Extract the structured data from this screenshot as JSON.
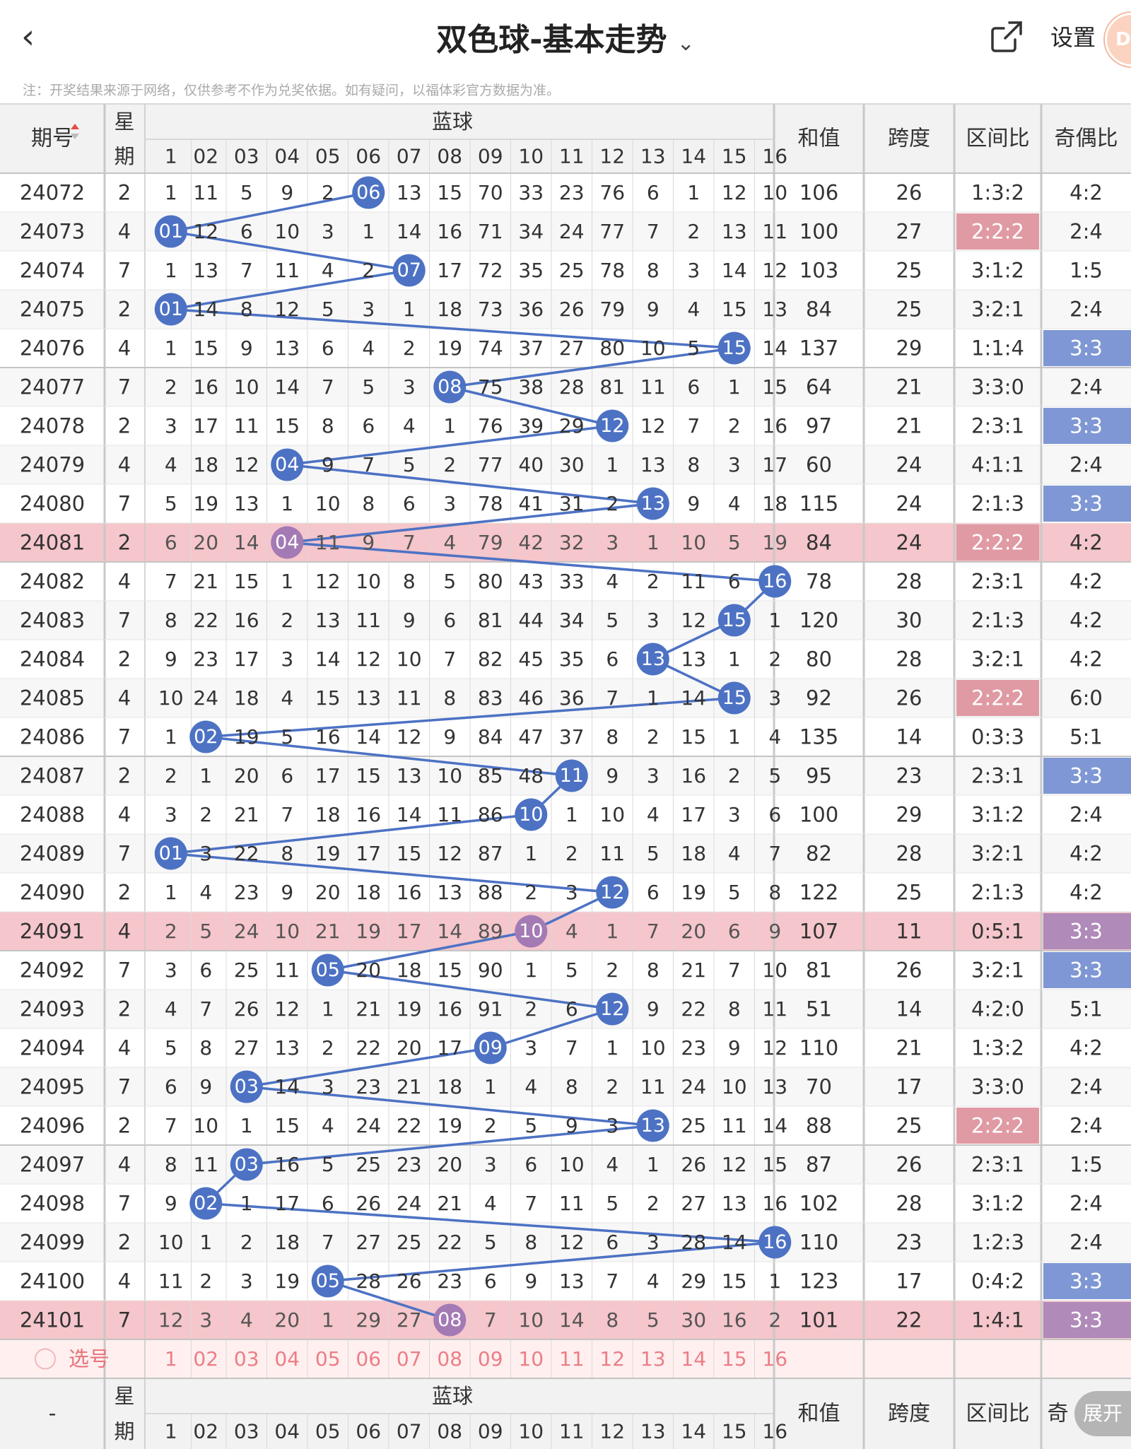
{
  "header": {
    "title": "双色球-基本走势",
    "settings_label": "设置"
  },
  "notice": "注：开奖结果来源于网络，仅供参考不作为兑奖依据。如有疑问，以福体彩官方数据为准。",
  "table_headers": {
    "period": "期号",
    "week_top": "星",
    "week_bottom": "期",
    "blue": "蓝球",
    "sum": "和值",
    "span": "跨度",
    "zone": "区间比",
    "odd_even": "奇偶比"
  },
  "footer_headers": {
    "period": "-",
    "week_top": "星",
    "week_bottom": "期",
    "blue": "蓝球",
    "sum": "和值",
    "span": "跨度",
    "zone": "区间比",
    "odd_even": "奇"
  },
  "select_row_label": "选号",
  "expand_label": "展开",
  "ball_numbers": [
    "1",
    "02",
    "03",
    "04",
    "05",
    "06",
    "07",
    "08",
    "09",
    "10",
    "11",
    "12",
    "13",
    "14",
    "15",
    "16"
  ],
  "colors": {
    "line": "#4d72c4",
    "ball": "#4d72c4",
    "ball_hl": "#a37ab4",
    "hl_row": "#f5c6cb",
    "zone_hl": "#e09aa4",
    "oe_hl": "#7f97d4",
    "oe_hl_on_pink": "#b08ab8",
    "select_row": "#fff0ef",
    "grid": "#d8d8d8",
    "header_bg": "#f2f2f2"
  },
  "rows": [
    {
      "period": "24072",
      "week": "2",
      "cells": [
        "1",
        "11",
        "5",
        "9",
        "2",
        "06",
        "13",
        "15",
        "70",
        "33",
        "23",
        "76",
        "6",
        "1",
        "12",
        "10"
      ],
      "blue": 6,
      "sum": "106",
      "span": "26",
      "zone": "1:3:2",
      "oe": "4:2",
      "hl": false,
      "zhl": false,
      "ohl": false
    },
    {
      "period": "24073",
      "week": "4",
      "cells": [
        "01",
        "12",
        "6",
        "10",
        "3",
        "1",
        "14",
        "16",
        "71",
        "34",
        "24",
        "77",
        "7",
        "2",
        "13",
        "11"
      ],
      "blue": 1,
      "sum": "100",
      "span": "27",
      "zone": "2:2:2",
      "oe": "2:4",
      "hl": false,
      "zhl": true,
      "ohl": false
    },
    {
      "period": "24074",
      "week": "7",
      "cells": [
        "1",
        "13",
        "7",
        "11",
        "4",
        "2",
        "07",
        "17",
        "72",
        "35",
        "25",
        "78",
        "8",
        "3",
        "14",
        "12"
      ],
      "blue": 7,
      "sum": "103",
      "span": "25",
      "zone": "3:1:2",
      "oe": "1:5",
      "hl": false,
      "zhl": false,
      "ohl": false
    },
    {
      "period": "24075",
      "week": "2",
      "cells": [
        "01",
        "14",
        "8",
        "12",
        "5",
        "3",
        "1",
        "18",
        "73",
        "36",
        "26",
        "79",
        "9",
        "4",
        "15",
        "13"
      ],
      "blue": 1,
      "sum": "84",
      "span": "25",
      "zone": "3:2:1",
      "oe": "2:4",
      "hl": false,
      "zhl": false,
      "ohl": false
    },
    {
      "period": "24076",
      "week": "4",
      "cells": [
        "1",
        "15",
        "9",
        "13",
        "6",
        "4",
        "2",
        "19",
        "74",
        "37",
        "27",
        "80",
        "10",
        "5",
        "15",
        "14"
      ],
      "blue": 15,
      "sum": "137",
      "span": "29",
      "zone": "1:1:4",
      "oe": "3:3",
      "hl": false,
      "zhl": false,
      "ohl": true
    },
    {
      "period": "24077",
      "week": "7",
      "cells": [
        "2",
        "16",
        "10",
        "14",
        "7",
        "5",
        "3",
        "08",
        "75",
        "38",
        "28",
        "81",
        "11",
        "6",
        "1",
        "15"
      ],
      "blue": 8,
      "sum": "64",
      "span": "21",
      "zone": "3:3:0",
      "oe": "2:4",
      "hl": false,
      "zhl": false,
      "ohl": false
    },
    {
      "period": "24078",
      "week": "2",
      "cells": [
        "3",
        "17",
        "11",
        "15",
        "8",
        "6",
        "4",
        "1",
        "76",
        "39",
        "29",
        "12",
        "12",
        "7",
        "2",
        "16"
      ],
      "blue": 12,
      "sum": "97",
      "span": "21",
      "zone": "2:3:1",
      "oe": "3:3",
      "hl": false,
      "zhl": false,
      "ohl": true
    },
    {
      "period": "24079",
      "week": "4",
      "cells": [
        "4",
        "18",
        "12",
        "04",
        "9",
        "7",
        "5",
        "2",
        "77",
        "40",
        "30",
        "1",
        "13",
        "8",
        "3",
        "17"
      ],
      "blue": 4,
      "sum": "60",
      "span": "24",
      "zone": "4:1:1",
      "oe": "2:4",
      "hl": false,
      "zhl": false,
      "ohl": false
    },
    {
      "period": "24080",
      "week": "7",
      "cells": [
        "5",
        "19",
        "13",
        "1",
        "10",
        "8",
        "6",
        "3",
        "78",
        "41",
        "31",
        "2",
        "13",
        "9",
        "4",
        "18"
      ],
      "blue": 13,
      "sum": "115",
      "span": "24",
      "zone": "2:1:3",
      "oe": "3:3",
      "hl": false,
      "zhl": false,
      "ohl": true
    },
    {
      "period": "24081",
      "week": "2",
      "cells": [
        "6",
        "20",
        "14",
        "04",
        "11",
        "9",
        "7",
        "4",
        "79",
        "42",
        "32",
        "3",
        "1",
        "10",
        "5",
        "19"
      ],
      "blue": 4,
      "sum": "84",
      "span": "24",
      "zone": "2:2:2",
      "oe": "4:2",
      "hl": true,
      "zhl": true,
      "ohl": false
    },
    {
      "period": "24082",
      "week": "4",
      "cells": [
        "7",
        "21",
        "15",
        "1",
        "12",
        "10",
        "8",
        "5",
        "80",
        "43",
        "33",
        "4",
        "2",
        "11",
        "6",
        "16"
      ],
      "blue": 16,
      "sum": "78",
      "span": "28",
      "zone": "2:3:1",
      "oe": "4:2",
      "hl": false,
      "zhl": false,
      "ohl": false
    },
    {
      "period": "24083",
      "week": "7",
      "cells": [
        "8",
        "22",
        "16",
        "2",
        "13",
        "11",
        "9",
        "6",
        "81",
        "44",
        "34",
        "5",
        "3",
        "12",
        "15",
        "1"
      ],
      "blue": 15,
      "sum": "120",
      "span": "30",
      "zone": "2:1:3",
      "oe": "4:2",
      "hl": false,
      "zhl": false,
      "ohl": false
    },
    {
      "period": "24084",
      "week": "2",
      "cells": [
        "9",
        "23",
        "17",
        "3",
        "14",
        "12",
        "10",
        "7",
        "82",
        "45",
        "35",
        "6",
        "13",
        "13",
        "1",
        "2"
      ],
      "blue": 13,
      "sum": "80",
      "span": "28",
      "zone": "3:2:1",
      "oe": "4:2",
      "hl": false,
      "zhl": false,
      "ohl": false
    },
    {
      "period": "24085",
      "week": "4",
      "cells": [
        "10",
        "24",
        "18",
        "4",
        "15",
        "13",
        "11",
        "8",
        "83",
        "46",
        "36",
        "7",
        "1",
        "14",
        "15",
        "3"
      ],
      "blue": 15,
      "sum": "92",
      "span": "26",
      "zone": "2:2:2",
      "oe": "6:0",
      "hl": false,
      "zhl": true,
      "ohl": false
    },
    {
      "period": "24086",
      "week": "7",
      "cells": [
        "1",
        "02",
        "19",
        "5",
        "16",
        "14",
        "12",
        "9",
        "84",
        "47",
        "37",
        "8",
        "2",
        "15",
        "1",
        "4"
      ],
      "blue": 2,
      "sum": "135",
      "span": "14",
      "zone": "0:3:3",
      "oe": "5:1",
      "hl": false,
      "zhl": false,
      "ohl": false
    },
    {
      "period": "24087",
      "week": "2",
      "cells": [
        "2",
        "1",
        "20",
        "6",
        "17",
        "15",
        "13",
        "10",
        "85",
        "48",
        "11",
        "9",
        "3",
        "16",
        "2",
        "5"
      ],
      "blue": 11,
      "sum": "95",
      "span": "23",
      "zone": "2:3:1",
      "oe": "3:3",
      "hl": false,
      "zhl": false,
      "ohl": true
    },
    {
      "period": "24088",
      "week": "4",
      "cells": [
        "3",
        "2",
        "21",
        "7",
        "18",
        "16",
        "14",
        "11",
        "86",
        "10",
        "1",
        "10",
        "4",
        "17",
        "3",
        "6"
      ],
      "blue": 10,
      "sum": "100",
      "span": "29",
      "zone": "3:1:2",
      "oe": "2:4",
      "hl": false,
      "zhl": false,
      "ohl": false
    },
    {
      "period": "24089",
      "week": "7",
      "cells": [
        "01",
        "3",
        "22",
        "8",
        "19",
        "17",
        "15",
        "12",
        "87",
        "1",
        "2",
        "11",
        "5",
        "18",
        "4",
        "7"
      ],
      "blue": 1,
      "sum": "82",
      "span": "28",
      "zone": "3:2:1",
      "oe": "4:2",
      "hl": false,
      "zhl": false,
      "ohl": false
    },
    {
      "period": "24090",
      "week": "2",
      "cells": [
        "1",
        "4",
        "23",
        "9",
        "20",
        "18",
        "16",
        "13",
        "88",
        "2",
        "3",
        "12",
        "6",
        "19",
        "5",
        "8"
      ],
      "blue": 12,
      "sum": "122",
      "span": "25",
      "zone": "2:1:3",
      "oe": "4:2",
      "hl": false,
      "zhl": false,
      "ohl": false
    },
    {
      "period": "24091",
      "week": "4",
      "cells": [
        "2",
        "5",
        "24",
        "10",
        "21",
        "19",
        "17",
        "14",
        "89",
        "10",
        "4",
        "1",
        "7",
        "20",
        "6",
        "9"
      ],
      "blue": 10,
      "sum": "107",
      "span": "11",
      "zone": "0:5:1",
      "oe": "3:3",
      "hl": true,
      "zhl": false,
      "ohl": true
    },
    {
      "period": "24092",
      "week": "7",
      "cells": [
        "3",
        "6",
        "25",
        "11",
        "05",
        "20",
        "18",
        "15",
        "90",
        "1",
        "5",
        "2",
        "8",
        "21",
        "7",
        "10"
      ],
      "blue": 5,
      "sum": "81",
      "span": "26",
      "zone": "3:2:1",
      "oe": "3:3",
      "hl": false,
      "zhl": false,
      "ohl": true
    },
    {
      "period": "24093",
      "week": "2",
      "cells": [
        "4",
        "7",
        "26",
        "12",
        "1",
        "21",
        "19",
        "16",
        "91",
        "2",
        "6",
        "12",
        "9",
        "22",
        "8",
        "11"
      ],
      "blue": 12,
      "sum": "51",
      "span": "14",
      "zone": "4:2:0",
      "oe": "5:1",
      "hl": false,
      "zhl": false,
      "ohl": false
    },
    {
      "period": "24094",
      "week": "4",
      "cells": [
        "5",
        "8",
        "27",
        "13",
        "2",
        "22",
        "20",
        "17",
        "09",
        "3",
        "7",
        "1",
        "10",
        "23",
        "9",
        "12"
      ],
      "blue": 9,
      "sum": "110",
      "span": "21",
      "zone": "1:3:2",
      "oe": "4:2",
      "hl": false,
      "zhl": false,
      "ohl": false
    },
    {
      "period": "24095",
      "week": "7",
      "cells": [
        "6",
        "9",
        "03",
        "14",
        "3",
        "23",
        "21",
        "18",
        "1",
        "4",
        "8",
        "2",
        "11",
        "24",
        "10",
        "13"
      ],
      "blue": 3,
      "sum": "70",
      "span": "17",
      "zone": "3:3:0",
      "oe": "2:4",
      "hl": false,
      "zhl": false,
      "ohl": false
    },
    {
      "period": "24096",
      "week": "2",
      "cells": [
        "7",
        "10",
        "1",
        "15",
        "4",
        "24",
        "22",
        "19",
        "2",
        "5",
        "9",
        "3",
        "13",
        "25",
        "11",
        "14"
      ],
      "blue": 13,
      "sum": "88",
      "span": "25",
      "zone": "2:2:2",
      "oe": "2:4",
      "hl": false,
      "zhl": true,
      "ohl": false
    },
    {
      "period": "24097",
      "week": "4",
      "cells": [
        "8",
        "11",
        "03",
        "16",
        "5",
        "25",
        "23",
        "20",
        "3",
        "6",
        "10",
        "4",
        "1",
        "26",
        "12",
        "15"
      ],
      "blue": 3,
      "sum": "87",
      "span": "26",
      "zone": "2:3:1",
      "oe": "1:5",
      "hl": false,
      "zhl": false,
      "ohl": false
    },
    {
      "period": "24098",
      "week": "7",
      "cells": [
        "9",
        "02",
        "1",
        "17",
        "6",
        "26",
        "24",
        "21",
        "4",
        "7",
        "11",
        "5",
        "2",
        "27",
        "13",
        "16"
      ],
      "blue": 2,
      "sum": "102",
      "span": "28",
      "zone": "3:1:2",
      "oe": "2:4",
      "hl": false,
      "zhl": false,
      "ohl": false
    },
    {
      "period": "24099",
      "week": "2",
      "cells": [
        "10",
        "1",
        "2",
        "18",
        "7",
        "27",
        "25",
        "22",
        "5",
        "8",
        "12",
        "6",
        "3",
        "28",
        "14",
        "16"
      ],
      "blue": 16,
      "sum": "110",
      "span": "23",
      "zone": "1:2:3",
      "oe": "2:4",
      "hl": false,
      "zhl": false,
      "ohl": false
    },
    {
      "period": "24100",
      "week": "4",
      "cells": [
        "11",
        "2",
        "3",
        "19",
        "05",
        "28",
        "26",
        "23",
        "6",
        "9",
        "13",
        "7",
        "4",
        "29",
        "15",
        "1"
      ],
      "blue": 5,
      "sum": "123",
      "span": "17",
      "zone": "0:4:2",
      "oe": "3:3",
      "hl": false,
      "zhl": false,
      "ohl": true
    },
    {
      "period": "24101",
      "week": "7",
      "cells": [
        "12",
        "3",
        "4",
        "20",
        "1",
        "29",
        "27",
        "08",
        "7",
        "10",
        "14",
        "8",
        "5",
        "30",
        "16",
        "2"
      ],
      "blue": 8,
      "sum": "101",
      "span": "22",
      "zone": "1:4:1",
      "oe": "3:3",
      "hl": true,
      "zhl": false,
      "ohl": true
    }
  ]
}
